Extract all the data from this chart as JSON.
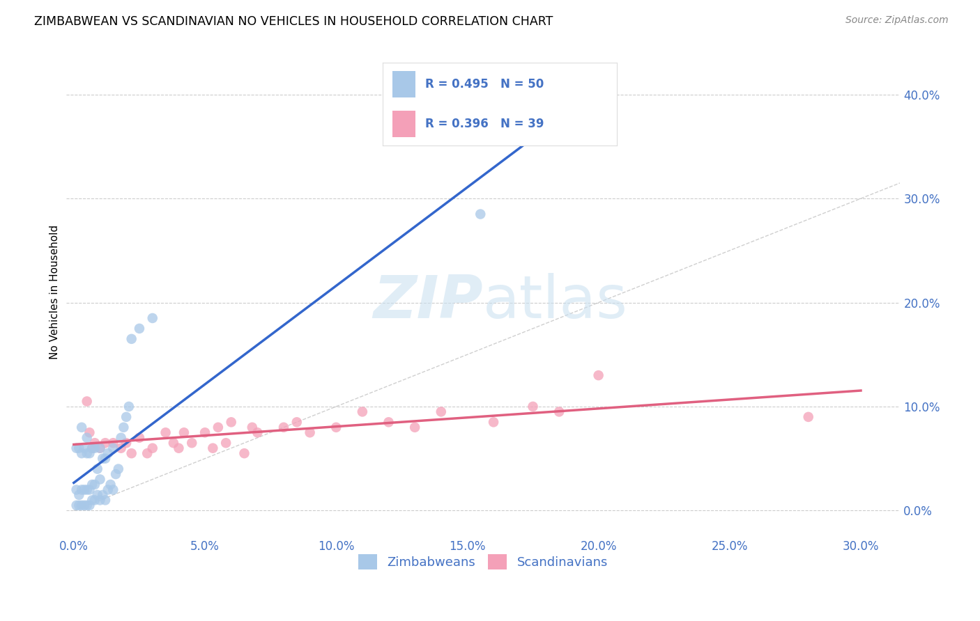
{
  "title": "ZIMBABWEAN VS SCANDINAVIAN NO VEHICLES IN HOUSEHOLD CORRELATION CHART",
  "source": "Source: ZipAtlas.com",
  "ylabel": "No Vehicles in Household",
  "legend_label1": "Zimbabweans",
  "legend_label2": "Scandinavians",
  "r1": "0.495",
  "n1": "50",
  "r2": "0.396",
  "n2": "39",
  "color_blue": "#a8c8e8",
  "color_pink": "#f4a0b8",
  "color_blue_line": "#3366cc",
  "color_pink_line": "#e06080",
  "color_blue_text": "#4472c4",
  "background": "#ffffff",
  "grid_color": "#cccccc",
  "diagonal_color": "#bbbbbb",
  "xlim": [
    -0.003,
    0.315
  ],
  "ylim": [
    -0.025,
    0.445
  ],
  "ytick_vals": [
    0.0,
    0.1,
    0.2,
    0.3,
    0.4
  ],
  "xtick_vals": [
    0.0,
    0.05,
    0.1,
    0.15,
    0.2,
    0.25,
    0.3
  ],
  "zim_x": [
    0.001,
    0.001,
    0.001,
    0.002,
    0.002,
    0.002,
    0.003,
    0.003,
    0.003,
    0.003,
    0.004,
    0.004,
    0.004,
    0.005,
    0.005,
    0.005,
    0.005,
    0.006,
    0.006,
    0.006,
    0.007,
    0.007,
    0.007,
    0.008,
    0.008,
    0.008,
    0.009,
    0.009,
    0.01,
    0.01,
    0.01,
    0.011,
    0.011,
    0.012,
    0.012,
    0.013,
    0.013,
    0.014,
    0.015,
    0.015,
    0.016,
    0.017,
    0.018,
    0.019,
    0.02,
    0.021,
    0.022,
    0.025,
    0.03,
    0.155
  ],
  "zim_y": [
    0.005,
    0.02,
    0.06,
    0.005,
    0.015,
    0.06,
    0.005,
    0.02,
    0.055,
    0.08,
    0.005,
    0.02,
    0.06,
    0.005,
    0.02,
    0.055,
    0.07,
    0.005,
    0.02,
    0.055,
    0.01,
    0.025,
    0.06,
    0.01,
    0.025,
    0.06,
    0.015,
    0.04,
    0.01,
    0.03,
    0.06,
    0.015,
    0.05,
    0.01,
    0.05,
    0.02,
    0.055,
    0.025,
    0.02,
    0.06,
    0.035,
    0.04,
    0.07,
    0.08,
    0.09,
    0.1,
    0.165,
    0.175,
    0.185,
    0.285
  ],
  "scan_x": [
    0.005,
    0.006,
    0.007,
    0.008,
    0.01,
    0.012,
    0.015,
    0.018,
    0.02,
    0.022,
    0.025,
    0.028,
    0.03,
    0.035,
    0.038,
    0.04,
    0.042,
    0.045,
    0.05,
    0.053,
    0.055,
    0.058,
    0.06,
    0.065,
    0.068,
    0.07,
    0.08,
    0.085,
    0.09,
    0.1,
    0.11,
    0.12,
    0.13,
    0.14,
    0.16,
    0.175,
    0.185,
    0.2,
    0.28
  ],
  "scan_y": [
    0.105,
    0.075,
    0.06,
    0.065,
    0.06,
    0.065,
    0.065,
    0.06,
    0.065,
    0.055,
    0.07,
    0.055,
    0.06,
    0.075,
    0.065,
    0.06,
    0.075,
    0.065,
    0.075,
    0.06,
    0.08,
    0.065,
    0.085,
    0.055,
    0.08,
    0.075,
    0.08,
    0.085,
    0.075,
    0.08,
    0.095,
    0.085,
    0.08,
    0.095,
    0.085,
    0.1,
    0.095,
    0.13,
    0.09
  ],
  "watermark_zip": "ZIP",
  "watermark_atlas": "atlas"
}
